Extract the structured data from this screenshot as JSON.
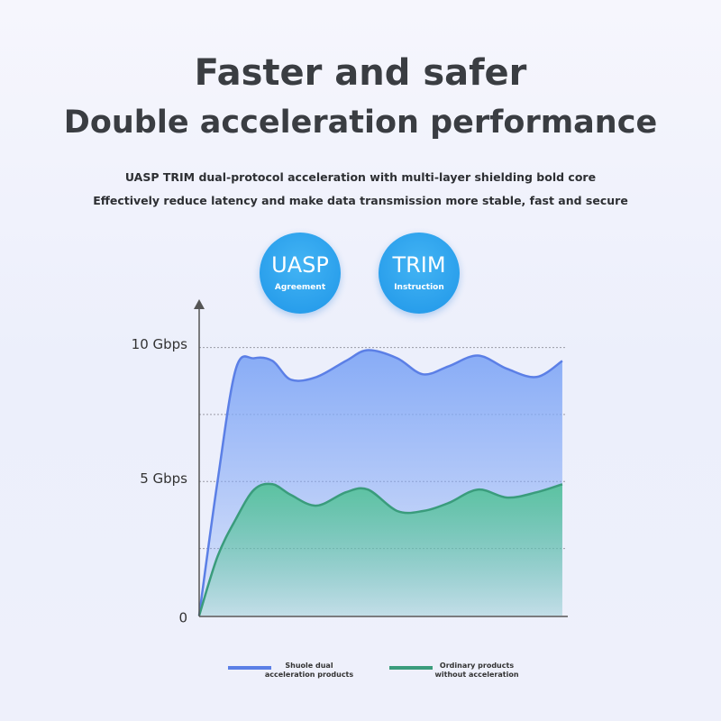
{
  "header": {
    "title": "Faster and safer",
    "subtitle": "Double acceleration performance"
  },
  "description": [
    "UASP TRIM dual-protocol acceleration with multi-layer shielding bold core",
    "Effectively reduce latency and make data transmission more stable, fast and secure"
  ],
  "badges": [
    {
      "label": "UASP",
      "sub": "Agreement"
    },
    {
      "label": "TRIM",
      "sub": "Instruction"
    }
  ],
  "chart_data": {
    "type": "area",
    "x": [
      0,
      5,
      10,
      15,
      20,
      25,
      32,
      40,
      46,
      54,
      61,
      68,
      76,
      84,
      92,
      99
    ],
    "xlim": [
      0,
      100
    ],
    "ylim": [
      0,
      11.7
    ],
    "yticks": [
      0,
      {
        "value": 2.5,
        "label": null
      },
      {
        "value": 5,
        "label": "5 Gbps"
      },
      {
        "value": 7.5,
        "label": null
      },
      {
        "value": 10,
        "label": "10 Gbps"
      }
    ],
    "grid": true,
    "series": [
      {
        "name": "Shuole dual acceleration products",
        "color": "#5b7fe6",
        "fill": "#82a8f6",
        "values": [
          0,
          5.0,
          9.2,
          9.6,
          9.5,
          8.8,
          8.9,
          9.5,
          9.9,
          9.6,
          9.0,
          9.3,
          9.7,
          9.2,
          8.9,
          9.5
        ]
      },
      {
        "name": "Ordinary products without acceleration",
        "color": "#3a9c7c",
        "fill": "#57c29c",
        "values": [
          0,
          2.2,
          3.6,
          4.7,
          4.9,
          4.5,
          4.1,
          4.6,
          4.7,
          3.9,
          3.9,
          4.2,
          4.7,
          4.4,
          4.6,
          4.9
        ]
      }
    ]
  }
}
